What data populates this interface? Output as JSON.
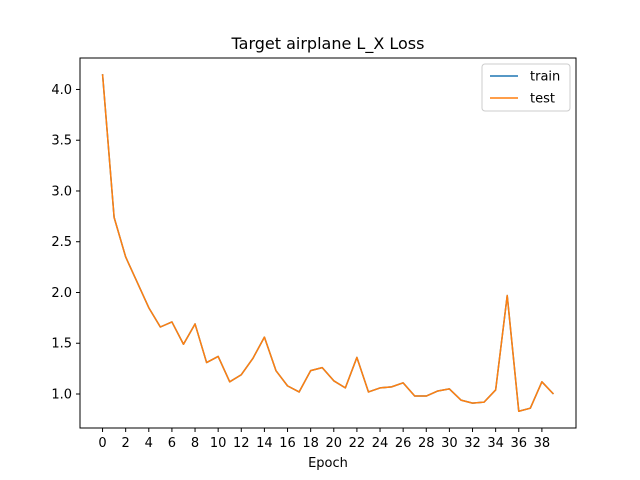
{
  "chart_data": {
    "type": "line",
    "title": "Target airplane L_X Loss",
    "xlabel": "Epoch",
    "ylabel": "",
    "xlim": [
      -1.95,
      40.95
    ],
    "ylim": [
      0.665,
      4.31
    ],
    "xticks": [
      0,
      2,
      4,
      6,
      8,
      10,
      12,
      14,
      16,
      18,
      20,
      22,
      24,
      26,
      28,
      30,
      32,
      34,
      36,
      38
    ],
    "yticks": [
      1.0,
      1.5,
      2.0,
      2.5,
      3.0,
      3.5,
      4.0
    ],
    "ytick_labels": [
      "1.0",
      "1.5",
      "2.0",
      "2.5",
      "3.0",
      "3.5",
      "4.0"
    ],
    "grid": false,
    "legend_position": "top-right",
    "x": [
      0,
      1,
      2,
      3,
      4,
      5,
      6,
      7,
      8,
      9,
      10,
      11,
      12,
      13,
      14,
      15,
      16,
      17,
      18,
      19,
      20,
      21,
      22,
      23,
      24,
      25,
      26,
      27,
      28,
      29,
      30,
      31,
      32,
      33,
      34,
      35,
      36,
      37,
      38,
      39
    ],
    "series": [
      {
        "name": "train",
        "color": "#1f77b4",
        "values": [
          4.15,
          2.74,
          2.35,
          2.1,
          1.85,
          1.66,
          1.71,
          1.49,
          1.69,
          1.31,
          1.37,
          1.12,
          1.19,
          1.35,
          1.56,
          1.23,
          1.08,
          1.02,
          1.23,
          1.26,
          1.13,
          1.06,
          1.36,
          1.02,
          1.06,
          1.07,
          1.11,
          0.98,
          0.98,
          1.03,
          1.05,
          0.94,
          0.91,
          0.92,
          1.04,
          1.97,
          0.83,
          0.86,
          1.12,
          1.0
        ]
      },
      {
        "name": "test",
        "color": "#ff7f0e",
        "values": [
          4.15,
          2.74,
          2.35,
          2.1,
          1.85,
          1.66,
          1.71,
          1.49,
          1.69,
          1.31,
          1.37,
          1.12,
          1.19,
          1.35,
          1.56,
          1.23,
          1.08,
          1.02,
          1.23,
          1.26,
          1.13,
          1.06,
          1.36,
          1.02,
          1.06,
          1.07,
          1.11,
          0.98,
          0.98,
          1.03,
          1.05,
          0.94,
          0.91,
          0.92,
          1.04,
          1.97,
          0.83,
          0.86,
          1.12,
          1.0
        ]
      }
    ]
  }
}
